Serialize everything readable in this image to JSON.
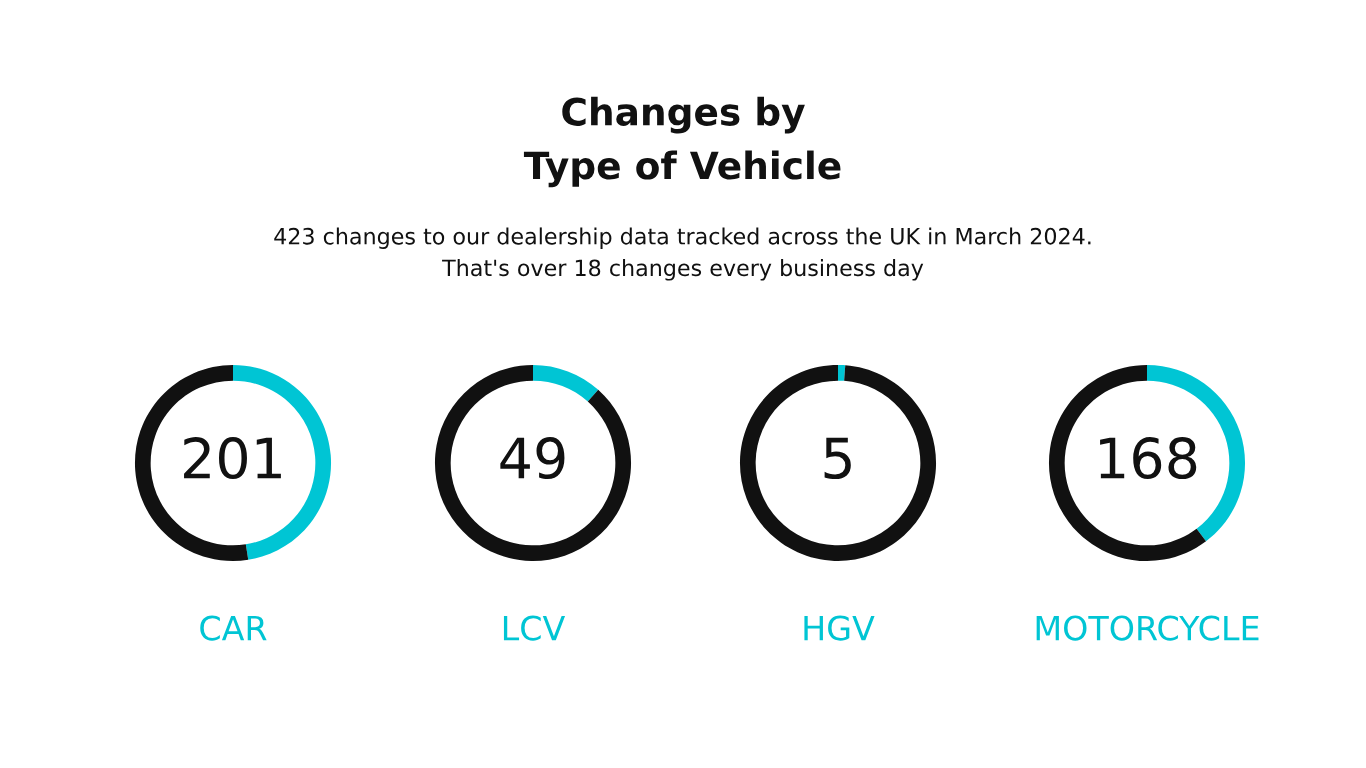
{
  "chart_data": [
    {
      "type": "donut",
      "title": "Changes by\nType of Vehicle",
      "subtitle": "423 changes to our dealership data tracked across the UK in March 2024.\nThat's over 18 changes every business day",
      "xlabel": "CAR",
      "categories": [
        null,
        null
      ],
      "values": [
        201,
        222
      ],
      "value_labels": [
        "201",
        null
      ],
      "colors": [
        "#00c5d4",
        "#111111"
      ]
    },
    {
      "type": "donut",
      "xlabel": "LCV",
      "categories": [
        null,
        null
      ],
      "values": [
        49,
        374
      ],
      "value_labels": [
        "49",
        null
      ],
      "colors": [
        "#00c5d4",
        "#111111"
      ]
    },
    {
      "type": "donut",
      "xlabel": "HGV",
      "categories": [
        null,
        null
      ],
      "values": [
        5,
        418
      ],
      "value_labels": [
        "5",
        null
      ],
      "colors": [
        "#00c5d4",
        "#111111"
      ]
    },
    {
      "type": "donut",
      "xlabel": "MOTORCYCLE",
      "categories": [
        null,
        null
      ],
      "values": [
        168,
        255
      ],
      "value_labels": [
        "168",
        null
      ],
      "colors": [
        "#00c5d4",
        "#111111"
      ]
    }
  ]
}
